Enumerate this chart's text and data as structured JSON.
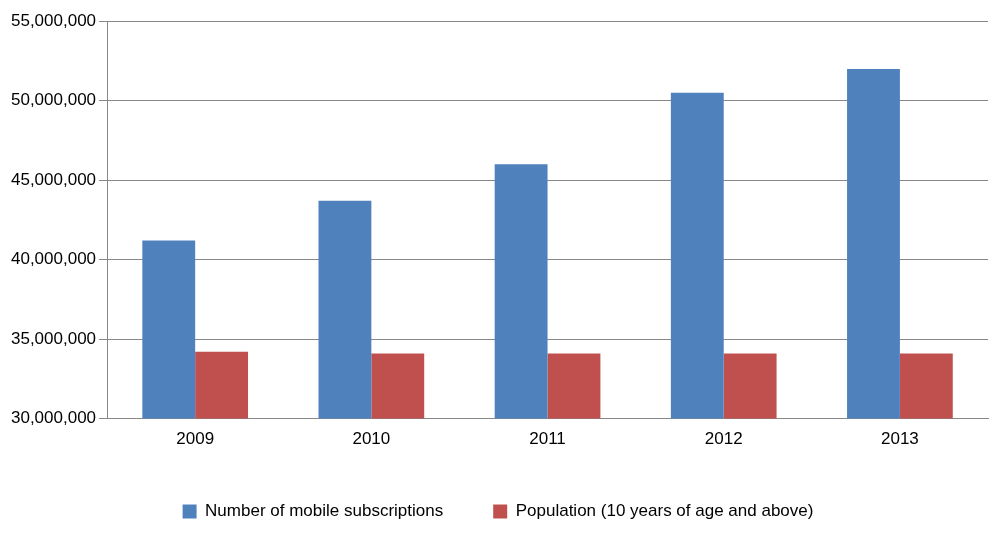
{
  "chart_data": {
    "type": "bar",
    "categories": [
      "2009",
      "2010",
      "2011",
      "2012",
      "2013"
    ],
    "series": [
      {
        "name": "Number of mobile subscriptions",
        "color": "#4f81bd",
        "values": [
          41200000,
          43700000,
          46000000,
          50500000,
          52000000
        ]
      },
      {
        "name": "Population (10 years of age and above)",
        "color": "#c0504d",
        "values": [
          34200000,
          34100000,
          34100000,
          34100000,
          34100000
        ]
      }
    ],
    "ylim": [
      30000000,
      55000000
    ],
    "yticks": [
      {
        "value": 30000000,
        "label": "30,000,000"
      },
      {
        "value": 35000000,
        "label": "35,000,000"
      },
      {
        "value": 40000000,
        "label": "40,000,000"
      },
      {
        "value": 45000000,
        "label": "45,000,000"
      },
      {
        "value": 50000000,
        "label": "50,000,000"
      },
      {
        "value": 55000000,
        "label": "55,000,000"
      }
    ],
    "grid": "y",
    "legend": "bottom"
  }
}
